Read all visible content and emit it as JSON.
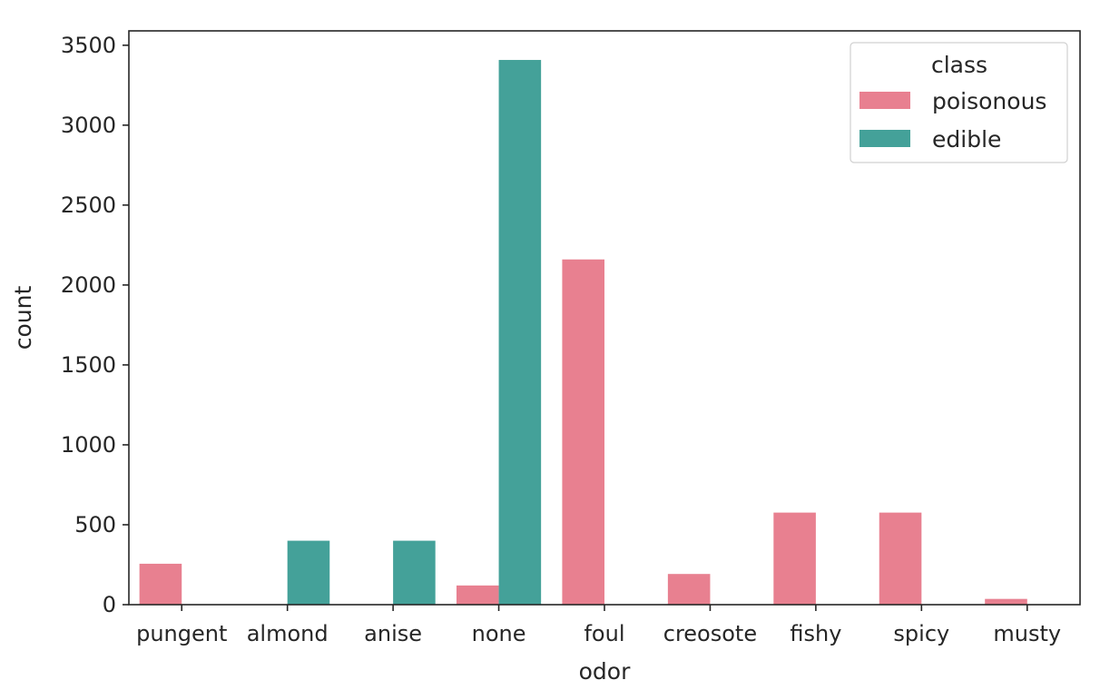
{
  "chart_data": {
    "type": "bar",
    "xlabel": "odor",
    "ylabel": "count",
    "categories": [
      "pungent",
      "almond",
      "anise",
      "none",
      "foul",
      "creosote",
      "fishy",
      "spicy",
      "musty"
    ],
    "series": [
      {
        "name": "poisonous",
        "color": "#e88090",
        "values": [
          256,
          0,
          0,
          120,
          2160,
          192,
          576,
          576,
          36
        ]
      },
      {
        "name": "edible",
        "color": "#44a199",
        "values": [
          0,
          400,
          400,
          3408,
          0,
          0,
          0,
          0,
          0
        ]
      }
    ],
    "ylim": [
      0,
      3500
    ],
    "yticks": [
      0,
      500,
      1000,
      1500,
      2000,
      2500,
      3000,
      3500
    ],
    "legend": {
      "title": "class",
      "position": "top-right"
    },
    "grid": false
  }
}
